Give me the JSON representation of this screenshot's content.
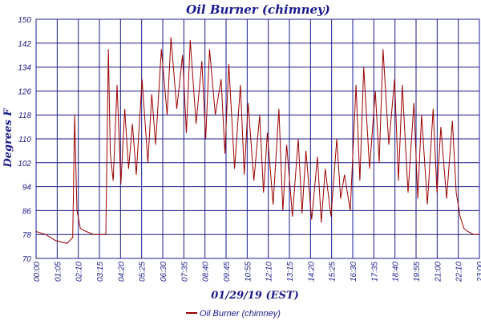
{
  "chart_data": {
    "type": "line",
    "title": "Oil Burner (chimney)",
    "xlabel": "01/29/19 (EST)",
    "ylabel": "Degrees F",
    "ylim": [
      70,
      150
    ],
    "y_ticks": [
      "70",
      "78",
      "86",
      "94",
      "102",
      "110",
      "118",
      "126",
      "134",
      "142",
      "150"
    ],
    "x_ticks": [
      "00:00",
      "01:05",
      "02:10",
      "03:15",
      "04:20",
      "05:25",
      "06:30",
      "07:35",
      "08:40",
      "09:45",
      "10:55",
      "12:10",
      "13:15",
      "14:20",
      "15:25",
      "16:30",
      "17:35",
      "18:40",
      "19:55",
      "21:00",
      "22:10",
      "23:00"
    ],
    "grid": true,
    "legend": "bottom-center",
    "colors": {
      "series": "#9b0000",
      "axis_text": "#1a1a8c",
      "grid": "#1a1a8c"
    },
    "series": [
      {
        "name": "Oil Burner (chimney)",
        "x": [
          0,
          0.5,
          1,
          1.6,
          1.9,
          2.0,
          2.12,
          2.3,
          2.6,
          3.0,
          3.3,
          3.62,
          3.75,
          3.85,
          4.0,
          4.2,
          4.4,
          4.6,
          4.8,
          5.0,
          5.2,
          5.5,
          5.8,
          6.0,
          6.2,
          6.5,
          6.8,
          7.0,
          7.3,
          7.6,
          7.8,
          8.0,
          8.3,
          8.6,
          8.8,
          9.0,
          9.3,
          9.6,
          9.8,
          10.0,
          10.3,
          10.6,
          10.8,
          11.0,
          11.3,
          11.6,
          11.8,
          12.0,
          12.3,
          12.6,
          12.8,
          13.0,
          13.3,
          13.6,
          13.8,
          14.0,
          14.3,
          14.6,
          14.8,
          15.0,
          15.3,
          15.6,
          15.8,
          16.0,
          16.3,
          16.6,
          16.8,
          17.0,
          17.3,
          17.6,
          17.8,
          18.0,
          18.3,
          18.6,
          18.8,
          19.0,
          19.3,
          19.6,
          19.8,
          20.0,
          20.3,
          20.6,
          20.8,
          21.0,
          21.3,
          21.6,
          21.8,
          22.0,
          22.2,
          22.4,
          22.7,
          23.0
        ],
        "y": [
          79,
          78,
          76,
          75,
          77,
          118,
          86,
          80,
          79,
          78,
          78,
          78,
          140,
          105,
          96,
          128,
          95,
          120,
          100,
          115,
          98,
          130,
          102,
          125,
          108,
          140,
          118,
          144,
          120,
          138,
          112,
          143,
          115,
          136,
          110,
          140,
          118,
          130,
          105,
          135,
          100,
          128,
          98,
          122,
          96,
          118,
          92,
          112,
          88,
          120,
          86,
          108,
          84,
          110,
          85,
          106,
          83,
          104,
          82,
          100,
          84,
          110,
          90,
          98,
          86,
          128,
          96,
          134,
          100,
          126,
          102,
          140,
          108,
          130,
          96,
          128,
          92,
          122,
          90,
          118,
          88,
          120,
          92,
          114,
          90,
          116,
          92,
          84,
          80,
          79,
          78,
          78
        ]
      }
    ]
  }
}
